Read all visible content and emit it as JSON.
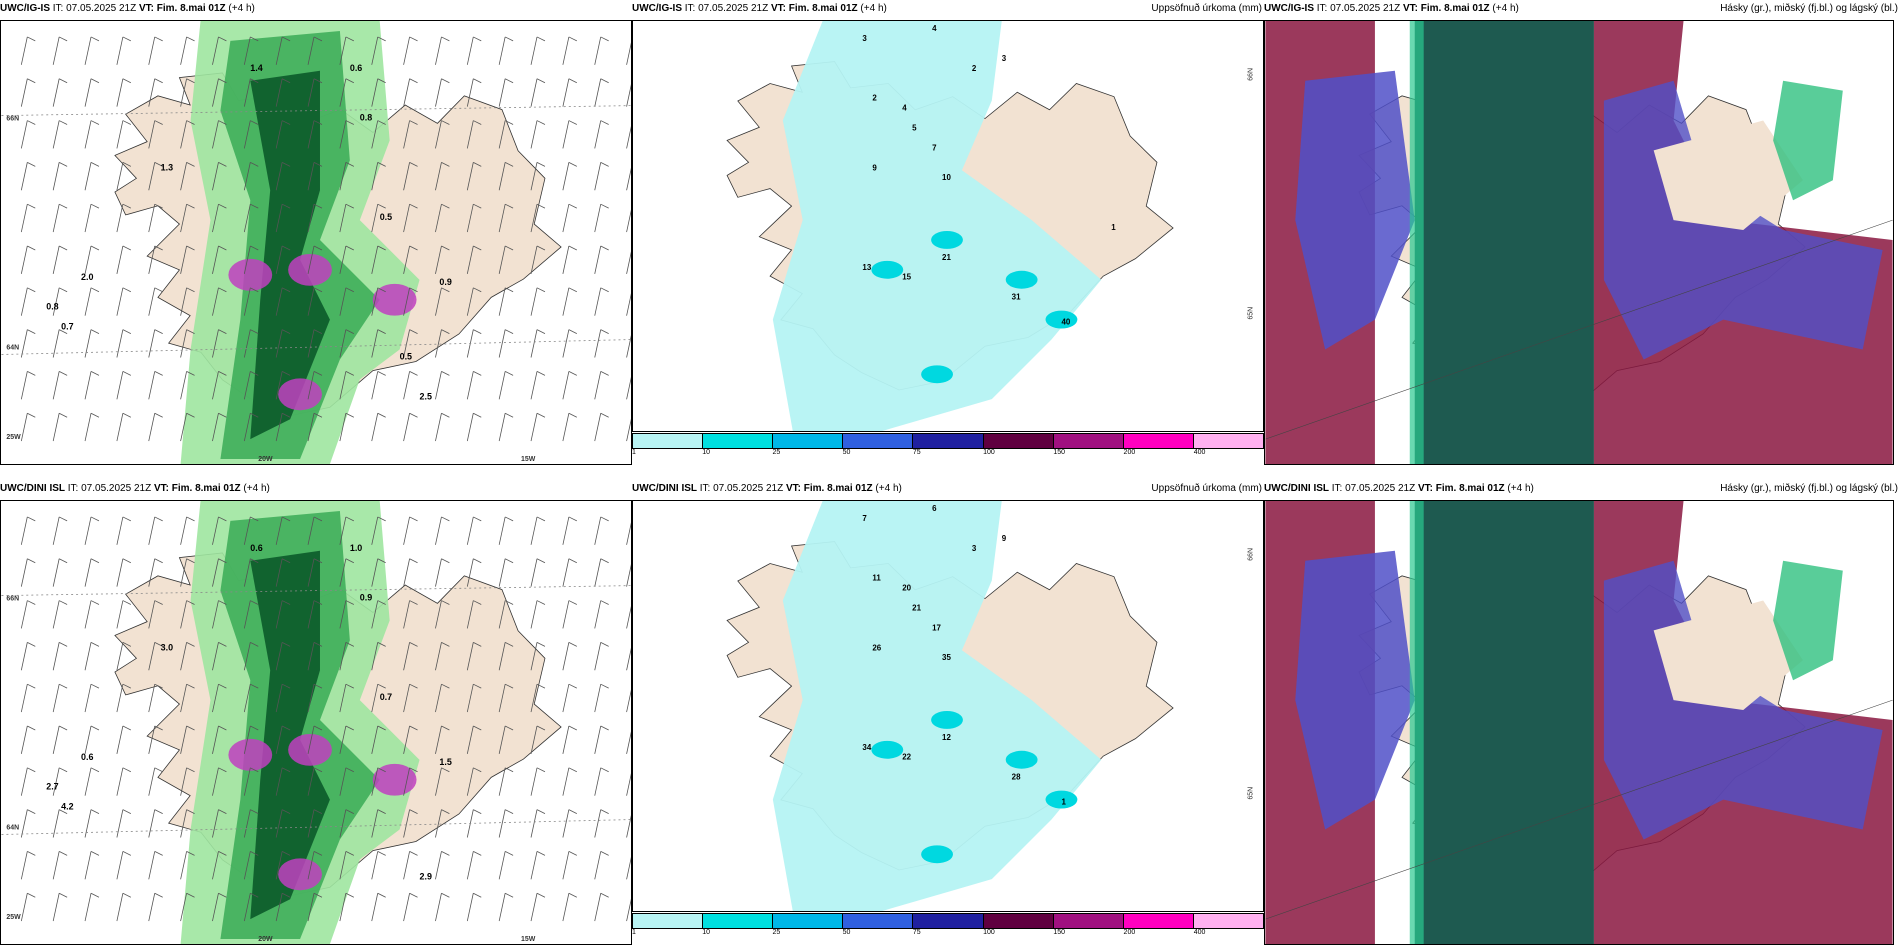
{
  "rows": [
    {
      "model": "UWC/IG-IS",
      "panels": [
        {
          "title_model": "UWC/IG-IS",
          "title_rest": " IT: 07.05.2025 21Z ",
          "vt": "VT: Fim. 8.mai 01Z",
          "lead": " (+4 h)",
          "right": ""
        },
        {
          "title_model": "UWC/IG-IS",
          "title_rest": " IT: 07.05.2025 21Z ",
          "vt": "VT: Fim. 8.mai 01Z",
          "lead": " (+4 h)",
          "right": "Uppsöfnuð úrkoma (mm)"
        },
        {
          "title_model": "UWC/IG-IS",
          "title_rest": " IT: 07.05.2025 21Z ",
          "vt": "VT: Fim. 8.mai 01Z",
          "lead": " (+4 h)",
          "right": "Hásky (gr.), miðský (fj.bl.) og lágský (bl.)"
        }
      ]
    },
    {
      "model": "UWC/DINI ISL",
      "panels": [
        {
          "title_model": "UWC/DINI ISL",
          "title_rest": " IT: 07.05.2025 21Z ",
          "vt": "VT: Fim. 8.mai 01Z",
          "lead": " (+4 h)",
          "right": ""
        },
        {
          "title_model": "UWC/DINI ISL",
          "title_rest": " IT: 07.05.2025 21Z ",
          "vt": "VT: Fim. 8.mai 01Z",
          "lead": " (+4 h)",
          "right": "Uppsöfnuð úrkoma (mm)"
        },
        {
          "title_model": "UWC/DINI ISL",
          "title_rest": " IT: 07.05.2025 21Z ",
          "vt": "VT: Fim. 8.mai 01Z",
          "lead": " (+4 h)",
          "right": "Hásky (gr.), miðský (fj.bl.) og lágský (bl.)"
        }
      ]
    }
  ],
  "axis_labels": {
    "lat66": "66N",
    "lat64": "64N",
    "lat65": "65N",
    "lon25": "25W",
    "lon20": "20W",
    "lon15": "15W"
  },
  "colorbar": {
    "ticks": [
      "1",
      "10",
      "25",
      "50",
      "75",
      "100",
      "150",
      "200",
      "400"
    ],
    "colors": [
      "#b8f4f4",
      "#00e0e0",
      "#00b8e8",
      "#3060e0",
      "#2020a0",
      "#600040",
      "#a01080",
      "#ff00c0",
      "#ffb0f0"
    ]
  },
  "colors": {
    "land": "#f2e2d2",
    "green_light": "#9ee6a0",
    "green_mid": "#3fae5a",
    "green_dark": "#0b5a2a",
    "magenta": "#c040c0",
    "cyan_light": "#b5f3f3",
    "cloud_high": "#1e5a50",
    "cloud_mid": "#5050c8",
    "cloud_low": "#8a1640"
  },
  "precip_labels_top": [
    "3",
    "4",
    "2",
    "3",
    "2",
    "4",
    "5",
    "7",
    "9",
    "10",
    "13",
    "15",
    "21",
    "31",
    "40",
    "1"
  ],
  "precip_labels_bottom": [
    "7",
    "6",
    "3",
    "9",
    "11",
    "20",
    "21",
    "17",
    "26",
    "35",
    "34",
    "22",
    "12",
    "28",
    "1"
  ],
  "wind_labels_top": [
    "1.4",
    "0.6",
    "0.8",
    "0.5",
    "1.3",
    "2.0",
    "0.7",
    "0.8",
    "0.9",
    "2.5",
    "0.5"
  ],
  "wind_labels_bottom": [
    "0.6",
    "1.0",
    "0.9",
    "0.7",
    "3.0",
    "0.6",
    "4.2",
    "2.7",
    "1.5",
    "2.9"
  ]
}
